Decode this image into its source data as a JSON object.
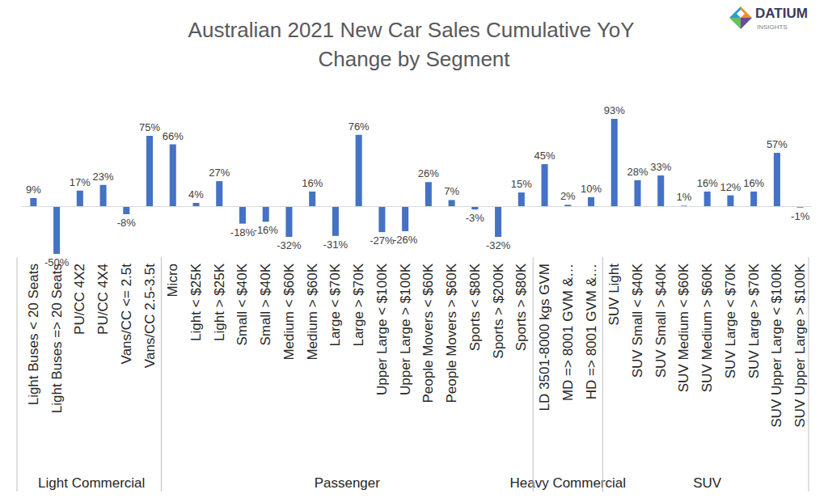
{
  "chart_data": {
    "type": "bar",
    "title": "Australian 2021 New Car Sales Cumulative YoY Change by Segment",
    "categories": [
      "Light Buses < 20 Seats",
      "Light Buses => 20 Seats",
      "PU/CC 4X2",
      "PU/CC 4X4",
      "Vans/CC <= 2.5t",
      "Vans/CC 2.5-3.5t",
      "Micro",
      "Light < $25K",
      "Light > $25K",
      "Small < $40K",
      "Small > $40K",
      "Medium < $60K",
      "Medium > $60K",
      "Large < $70K",
      "Large > $70K",
      "Upper Large < $100K",
      "Upper Large > $100K",
      "People Movers < $60K",
      "People Movers > $60K",
      "Sports < $80K",
      "Sports > $200K",
      "Sports > $80K",
      "LD 3501-8000 kgs GVM",
      "MD => 8001 GVM &…",
      "HD => 8001 GVM &…",
      "SUV Light",
      "SUV Small < $40K",
      "SUV Small > $40K",
      "SUV Medium < $60K",
      "SUV Medium > $60K",
      "SUV Large < $70K",
      "SUV Large > $70K",
      "SUV Upper Large < $100K",
      "SUV Upper Large > $100K"
    ],
    "category_groups": [
      "Light Commercial",
      "Light Commercial",
      "Light Commercial",
      "Light Commercial",
      "Light Commercial",
      "Light Commercial",
      "Passenger",
      "Passenger",
      "Passenger",
      "Passenger",
      "Passenger",
      "Passenger",
      "Passenger",
      "Passenger",
      "Passenger",
      "Passenger",
      "Passenger",
      "Passenger",
      "Passenger",
      "Passenger",
      "Passenger",
      "Passenger",
      "Heavy Commercial",
      "Heavy Commercial",
      "Heavy Commercial",
      "SUV",
      "SUV",
      "SUV",
      "SUV",
      "SUV",
      "SUV",
      "SUV",
      "SUV",
      "SUV"
    ],
    "values": [
      9,
      -50,
      17,
      23,
      -8,
      75,
      66,
      4,
      27,
      -18,
      -16,
      -32,
      16,
      -31,
      76,
      -27,
      -26,
      26,
      7,
      -3,
      -32,
      15,
      45,
      2,
      10,
      93,
      28,
      33,
      1,
      16,
      12,
      16,
      57,
      -1
    ],
    "value_labels": [
      "9%",
      "-50%",
      "17%",
      "23%",
      "-8%",
      "75%",
      "66%",
      "4%",
      "27%",
      "-18%",
      "-16%",
      "-32%",
      "16%",
      "-31%",
      "76%",
      "-27%",
      "-26%",
      "26%",
      "7%",
      "-3%",
      "-32%",
      "15%",
      "45%",
      "2%",
      "10%",
      "93%",
      "28%",
      "33%",
      "1%",
      "16%",
      "12%",
      "16%",
      "57%",
      "-1%"
    ],
    "color": "#4472c4",
    "ylim": [
      -50,
      93
    ],
    "grid": false,
    "data_labels": true,
    "tick_labels": "x",
    "annotations": [
      "DATIUM",
      "INSIGHTS"
    ]
  }
}
